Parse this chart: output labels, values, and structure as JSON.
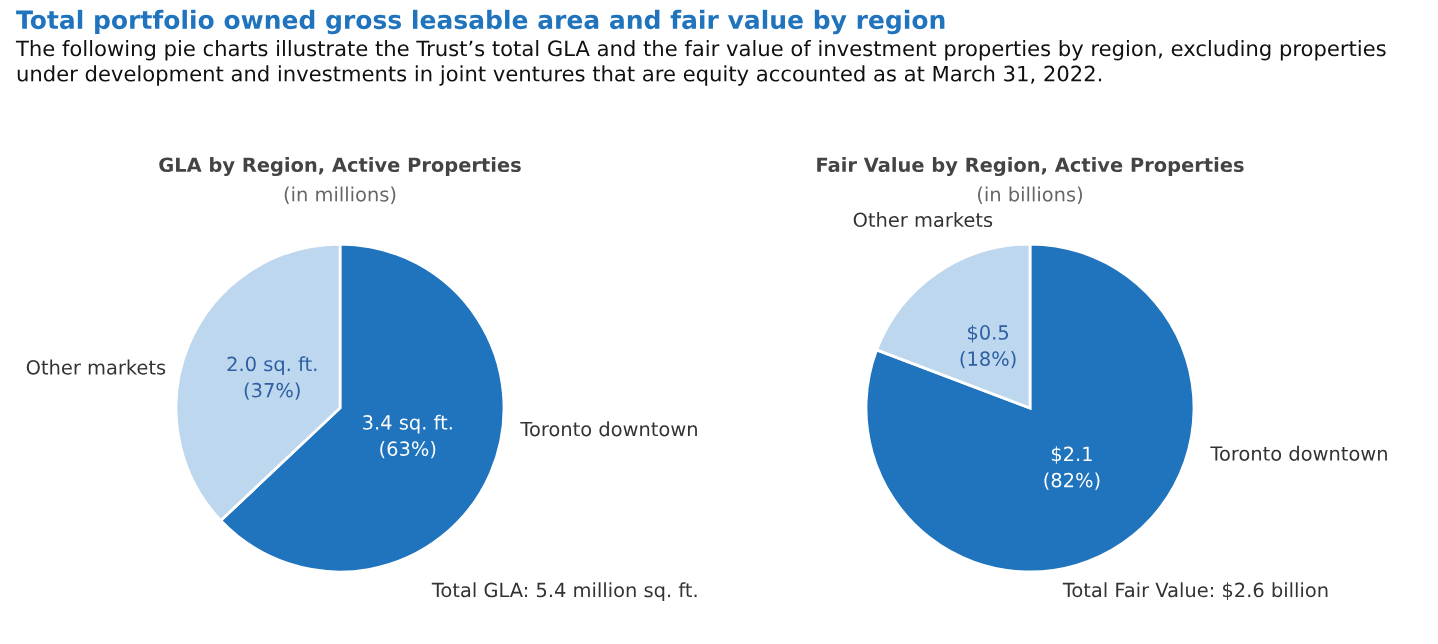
{
  "chart_data": [
    {
      "type": "pie",
      "title": "GLA by Region, Active Properties",
      "subtitle": "(in millions)",
      "categories": [
        "Toronto downtown",
        "Other markets"
      ],
      "values": [
        3.4,
        2.0
      ],
      "colors": [
        "#1f74bd",
        "#bdd7ee"
      ],
      "value_labels": [
        "3.4 sq. ft.\n(63%)",
        "2.0 sq. ft.\n(37%)"
      ],
      "annotations": [
        "Total portfolio owned gross leasable area and fair value by region",
        "The following pie charts illustrate the Trust’s total GLA and the fair value of investment properties by region, excluding properties under development and investments in joint ventures that are equity accounted as at March 31, 2022.",
        "Total GLA: 5.4 million sq. ft."
      ]
    },
    {
      "type": "pie",
      "title": "Fair Value by Region, Active Properties",
      "subtitle": "(in billions)",
      "categories": [
        "Toronto downtown",
        "Other markets"
      ],
      "values": [
        2.1,
        0.5
      ],
      "colors": [
        "#1f74bd",
        "#bdd7ee"
      ],
      "value_labels": [
        "$2.1\n(82%)",
        "$0.5\n(18%)"
      ],
      "annotations": [
        "Total Fair Value: $2.6 billion"
      ]
    }
  ]
}
